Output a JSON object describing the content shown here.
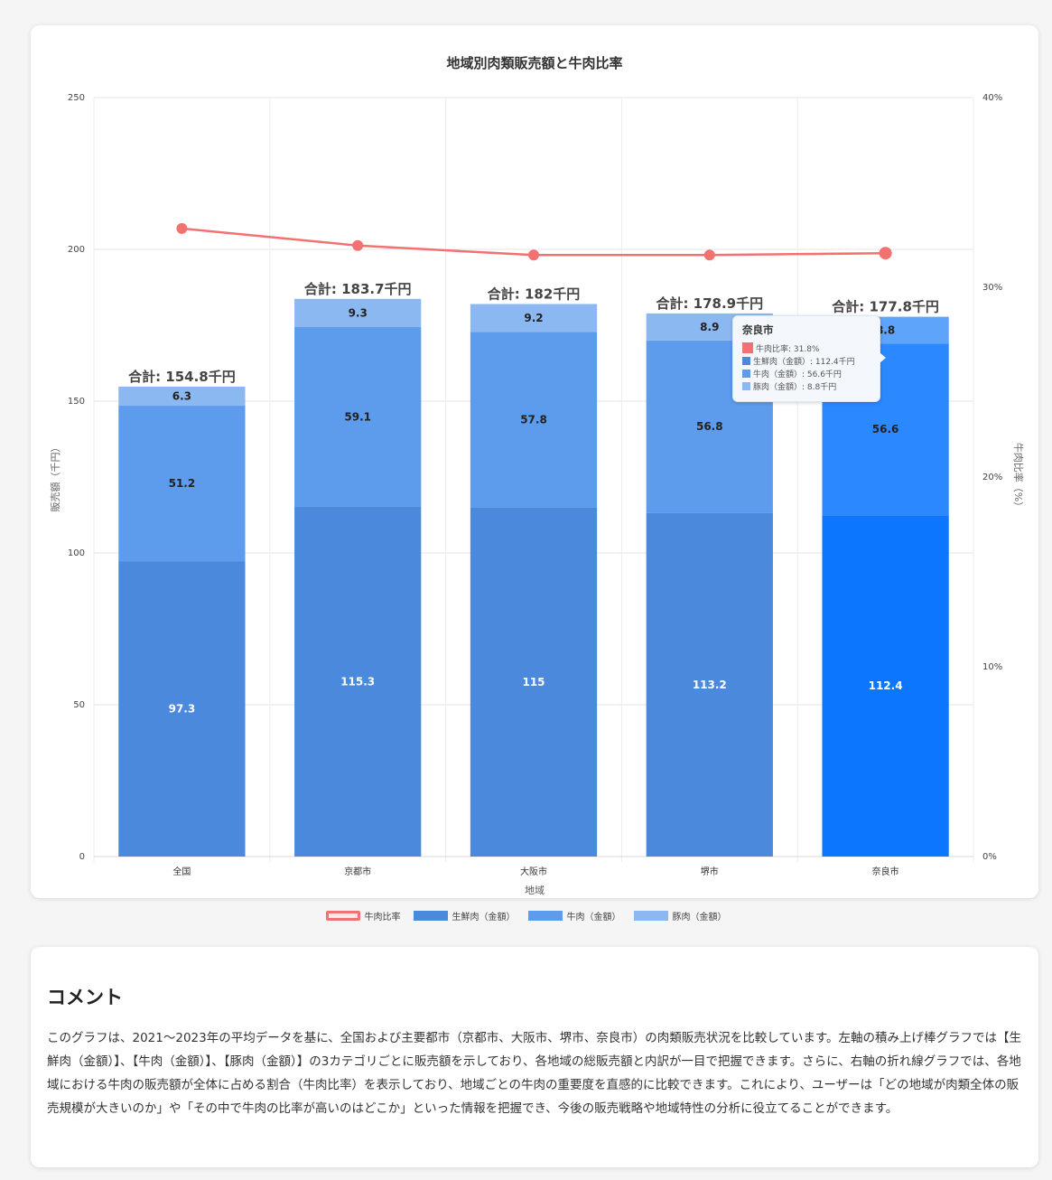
{
  "chart_data": {
    "type": "bar",
    "title": "地域別肉類販売額と牛肉比率",
    "xlabel": "地域",
    "ylabel": "販売額（千円）",
    "y2label": "牛肉比率（%）",
    "ylim": [
      0,
      250
    ],
    "yticks": [
      "250",
      "200",
      "150",
      "100",
      "50",
      "0"
    ],
    "y2lim": [
      0,
      40
    ],
    "y2ticks": [
      "40%",
      "30%",
      "20%",
      "10%",
      "0%"
    ],
    "categories": [
      "全国",
      "京都市",
      "大阪市",
      "堺市",
      "奈良市"
    ],
    "series": [
      {
        "name": "生鮮肉（金額）",
        "type": "bar",
        "color": "#4a89dc",
        "values": [
          97.3,
          115.3,
          115,
          113.2,
          112.4
        ]
      },
      {
        "name": "牛肉（金額）",
        "type": "bar",
        "color": "#5d9cec",
        "values": [
          51.2,
          59.1,
          57.8,
          56.8,
          56.6
        ]
      },
      {
        "name": "豚肉（金額）",
        "type": "bar",
        "color": "#8cb8f2",
        "values": [
          6.3,
          9.3,
          9.2,
          8.9,
          8.8
        ]
      },
      {
        "name": "牛肉比率",
        "type": "line",
        "color": "#f27171",
        "values": [
          33.1,
          32.2,
          31.7,
          31.7,
          31.8
        ]
      }
    ],
    "total_labels": [
      "合計: 154.8千円",
      "合計: 183.7千円",
      "合計: 182千円",
      "合計: 178.9千円",
      "合計: 177.8千円"
    ],
    "highlighted_category": "奈良市",
    "highlight_colors": [
      "#0d76ff",
      "#2b88ff",
      "#5ea4fb"
    ],
    "legend_position": "bottom"
  },
  "tooltip": {
    "title": "奈良市",
    "rows": [
      "牛肉比率: 31.8%",
      "生鮮肉（金額）: 112.4千円",
      "牛肉（金額）: 56.6千円",
      "豚肉（金額）: 8.8千円"
    ],
    "colors": [
      "#f27171",
      "#4a89dc",
      "#5d9cec",
      "#8cb8f2"
    ]
  },
  "legend": [
    {
      "label": "牛肉比率",
      "color": "#f27171",
      "style": "line"
    },
    {
      "label": "生鮮肉（金額）",
      "color": "#4a89dc",
      "style": "box"
    },
    {
      "label": "牛肉（金額）",
      "color": "#5d9cec",
      "style": "box"
    },
    {
      "label": "豚肉（金額）",
      "color": "#8cb8f2",
      "style": "box"
    }
  ],
  "comment": {
    "title": "コメント",
    "body": "このグラフは、2021〜2023年の平均データを基に、全国および主要都市（京都市、大阪市、堺市、奈良市）の肉類販売状況を比較しています。左軸の積み上げ棒グラフでは【生鮮肉（金額）】、【牛肉（金額）】、【豚肉（金額）】の3カテゴリごとに販売額を示しており、各地域の総販売額と内訳が一目で把握できます。さらに、右軸の折れ線グラフでは、各地域における牛肉の販売額が全体に占める割合（牛肉比率）を表示しており、地域ごとの牛肉の重要度を直感的に比較できます。これにより、ユーザーは「どの地域が肉類全体の販売規模が大きいのか」や「その中で牛肉の比率が高いのはどこか」といった情報を把握でき、今後の販売戦略や地域特性の分析に役立てることができます。"
  }
}
